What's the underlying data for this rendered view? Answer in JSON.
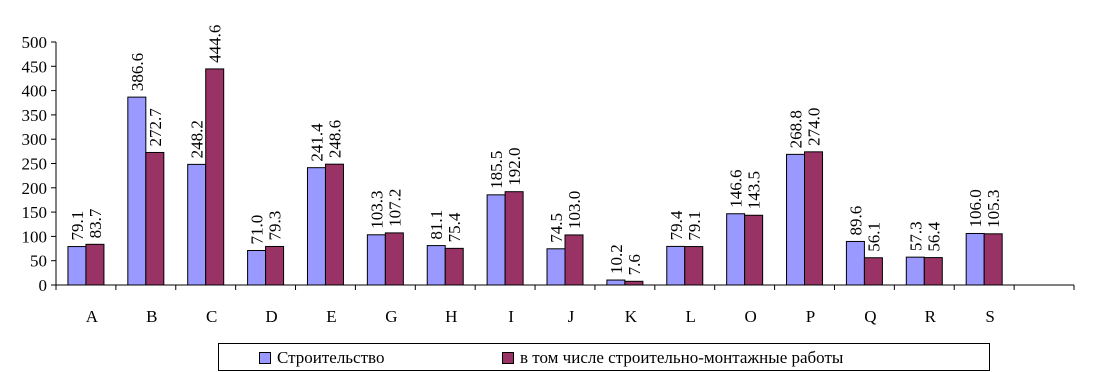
{
  "chart_data": {
    "type": "bar",
    "categories": [
      "A",
      "B",
      "C",
      "D",
      "E",
      "G",
      "H",
      "I",
      "J",
      "K",
      "L",
      "O",
      "P",
      "Q",
      "R",
      "S"
    ],
    "series": [
      {
        "name": "Строительство",
        "color": "#9999FF",
        "values": [
          79.1,
          386.6,
          248.2,
          71.0,
          241.4,
          103.3,
          81.1,
          185.5,
          74.5,
          10.2,
          79.4,
          146.6,
          268.8,
          89.6,
          57.3,
          106.0
        ],
        "labels": [
          "79.1",
          "386.6",
          "248.2",
          "71.0",
          "241.4",
          "103.3",
          "81.1",
          "185.5",
          "74.5",
          "10.2",
          "79.4",
          "146.6",
          "268.8",
          "89.6",
          "57.3",
          "106.0"
        ]
      },
      {
        "name": "в том числе строительно-монтажные работы",
        "color": "#993366",
        "values": [
          83.7,
          272.7,
          444.6,
          79.3,
          248.6,
          107.2,
          75.4,
          192.0,
          103.0,
          7.6,
          79.1,
          143.5,
          274.0,
          56.1,
          56.4,
          105.3
        ],
        "labels": [
          "83.7",
          "272.7",
          "444.6",
          "79.3",
          "248.6",
          "107.2",
          "75.4",
          "192.0",
          "103.0",
          "7.6",
          "79.1",
          "143.5",
          "274.0",
          "56.1",
          "56.4",
          "105.3"
        ]
      }
    ],
    "ylim": [
      0,
      500
    ],
    "yticks": [
      "0",
      "50",
      "100",
      "150",
      "200",
      "250",
      "300",
      "350",
      "400",
      "450",
      "500"
    ],
    "grid": false,
    "legend_position": "bottom"
  }
}
